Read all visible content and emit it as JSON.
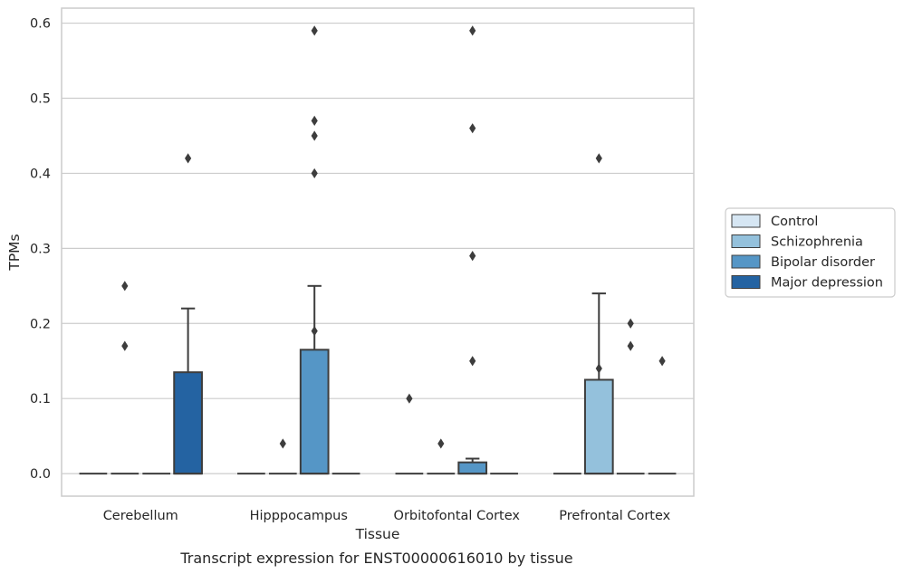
{
  "chart_data": {
    "type": "box",
    "xlabel": "Tissue",
    "ylabel": "TPMs",
    "caption": "Transcript expression for ENST00000616010 by tissue",
    "ylim": [
      -0.03,
      0.62
    ],
    "yticks": [
      0.0,
      0.1,
      0.2,
      0.3,
      0.4,
      0.5,
      0.6
    ],
    "ytick_labels": [
      "0.0",
      "0.1",
      "0.2",
      "0.3",
      "0.4",
      "0.5",
      "0.6"
    ],
    "grid": "horizontal",
    "legend_position": "right",
    "categories": [
      "Cerebellum",
      "Hipppocampus",
      "Orbitofontal Cortex",
      "Prefrontal Cortex"
    ],
    "series": [
      {
        "name": "Control",
        "color": "#d6e6f3",
        "boxes": [
          {
            "category": "Cerebellum",
            "q1": 0,
            "median": 0,
            "q3": 0,
            "whisker_low": 0,
            "whisker_high": 0,
            "outliers": []
          },
          {
            "category": "Hipppocampus",
            "q1": 0,
            "median": 0,
            "q3": 0,
            "whisker_low": 0,
            "whisker_high": 0,
            "outliers": []
          },
          {
            "category": "Orbitofontal Cortex",
            "q1": 0,
            "median": 0,
            "q3": 0,
            "whisker_low": 0,
            "whisker_high": 0,
            "outliers": [
              0.1
            ]
          },
          {
            "category": "Prefrontal Cortex",
            "q1": 0,
            "median": 0,
            "q3": 0,
            "whisker_low": 0,
            "whisker_high": 0,
            "outliers": []
          }
        ]
      },
      {
        "name": "Schizophrenia",
        "color": "#94c1dc",
        "boxes": [
          {
            "category": "Cerebellum",
            "q1": 0,
            "median": 0,
            "q3": 0,
            "whisker_low": 0,
            "whisker_high": 0,
            "outliers": [
              0.25,
              0.17
            ]
          },
          {
            "category": "Hipppocampus",
            "q1": 0,
            "median": 0,
            "q3": 0,
            "whisker_low": 0,
            "whisker_high": 0,
            "outliers": [
              0.04
            ]
          },
          {
            "category": "Orbitofontal Cortex",
            "q1": 0,
            "median": 0,
            "q3": 0,
            "whisker_low": 0,
            "whisker_high": 0,
            "outliers": [
              0.04
            ]
          },
          {
            "category": "Prefrontal Cortex",
            "q1": 0,
            "median": 0,
            "q3": 0.125,
            "whisker_low": 0,
            "whisker_high": 0.24,
            "outliers": [
              0.42,
              0.14
            ]
          }
        ]
      },
      {
        "name": "Bipolar disorder",
        "color": "#5596c6",
        "boxes": [
          {
            "category": "Cerebellum",
            "q1": 0,
            "median": 0,
            "q3": 0,
            "whisker_low": 0,
            "whisker_high": 0,
            "outliers": []
          },
          {
            "category": "Hipppocampus",
            "q1": 0,
            "median": 0,
            "q3": 0.165,
            "whisker_low": 0,
            "whisker_high": 0.25,
            "outliers": [
              0.59,
              0.47,
              0.45,
              0.4,
              0.19
            ]
          },
          {
            "category": "Orbitofontal Cortex",
            "q1": 0,
            "median": 0,
            "q3": 0.015,
            "whisker_low": 0,
            "whisker_high": 0.02,
            "outliers": [
              0.59,
              0.46,
              0.29,
              0.15
            ]
          },
          {
            "category": "Prefrontal Cortex",
            "q1": 0,
            "median": 0,
            "q3": 0,
            "whisker_low": 0,
            "whisker_high": 0,
            "outliers": [
              0.2,
              0.17
            ]
          }
        ]
      },
      {
        "name": "Major depression",
        "color": "#2463a2",
        "boxes": [
          {
            "category": "Cerebellum",
            "q1": 0,
            "median": 0,
            "q3": 0.135,
            "whisker_low": 0,
            "whisker_high": 0.22,
            "outliers": [
              0.42
            ]
          },
          {
            "category": "Hipppocampus",
            "q1": 0,
            "median": 0,
            "q3": 0,
            "whisker_low": 0,
            "whisker_high": 0,
            "outliers": []
          },
          {
            "category": "Orbitofontal Cortex",
            "q1": 0,
            "median": 0,
            "q3": 0,
            "whisker_low": 0,
            "whisker_high": 0,
            "outliers": []
          },
          {
            "category": "Prefrontal Cortex",
            "q1": 0,
            "median": 0,
            "q3": 0,
            "whisker_low": 0,
            "whisker_high": 0,
            "outliers": [
              0.15
            ]
          }
        ]
      }
    ]
  }
}
